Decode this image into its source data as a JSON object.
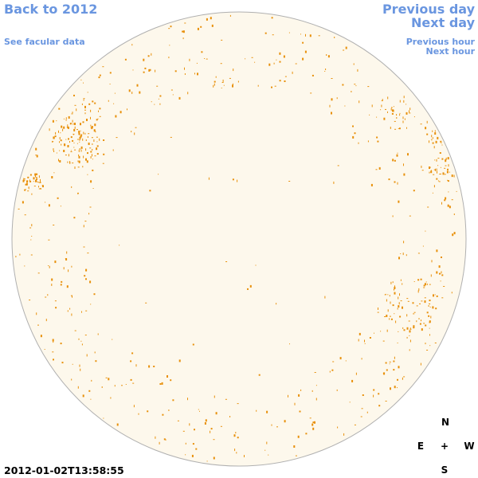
{
  "links": {
    "back": "Back to 2012",
    "facular": "See facular data",
    "previous_day": "Previous day",
    "next_day": "Next day",
    "previous_hour": "Previous hour",
    "next_hour": "Next hour"
  },
  "timestamp": "2012-01-02T13:58:55",
  "compass": {
    "north": "N",
    "east": "E",
    "center": "+",
    "west": "W",
    "south": "S"
  }
}
